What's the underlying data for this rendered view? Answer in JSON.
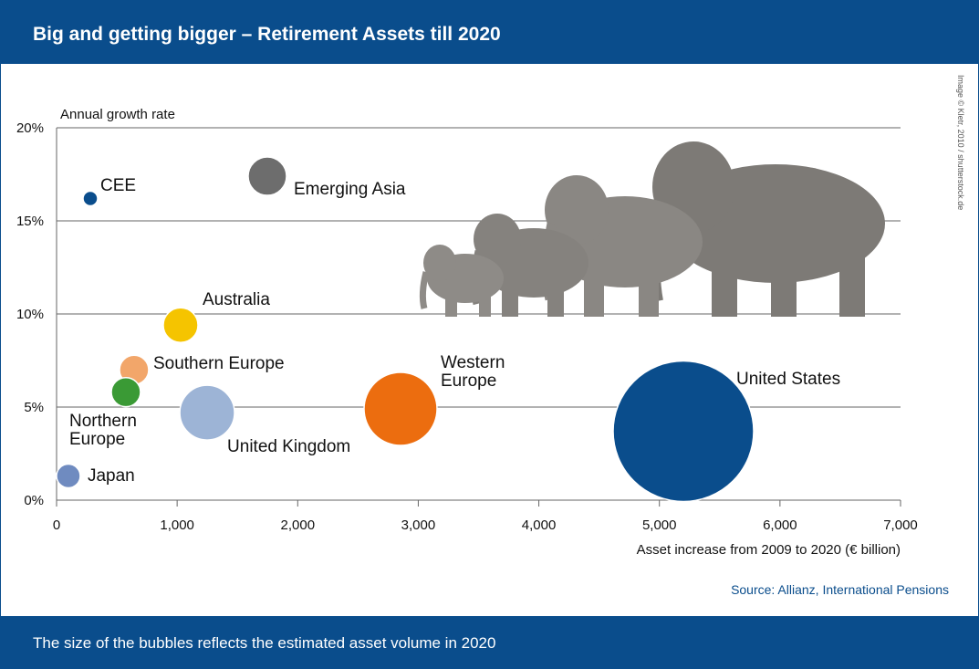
{
  "chart_data": {
    "type": "bubble",
    "title": "Big and getting bigger – Retirement Assets till 2020",
    "y_label": "Annual growth rate",
    "x_label": "Asset increase from 2009 to 2020 (€ billion)",
    "source": "Source: Allianz, International Pensions",
    "credit": "Image © Kletr, 2010 / shutterstock.de",
    "note": "The size of the bubbles reflects the estimated asset volume in 2020",
    "xlim": [
      0,
      7000
    ],
    "xticks": [
      0,
      {
        "value": 1000,
        "label": "1,000"
      },
      {
        "value": 2000,
        "label": "2,000"
      },
      {
        "value": 3000,
        "label": "3,000"
      },
      {
        "value": 4000,
        "label": "4,000"
      },
      {
        "value": 5000,
        "label": "5,000"
      },
      {
        "value": 6000,
        "label": "6,000"
      },
      {
        "value": 7000,
        "label": "7,000"
      }
    ],
    "ylim": [
      0,
      20
    ],
    "yticks": [
      {
        "value": 0,
        "label": "0%"
      },
      {
        "value": 5,
        "label": "5%"
      },
      {
        "value": 10,
        "label": "10%"
      },
      {
        "value": 15,
        "label": "15%"
      },
      {
        "value": 20,
        "label": "20%"
      }
    ],
    "grid": true,
    "points": [
      {
        "name": "CEE",
        "x": 280,
        "y": 16.2,
        "size": 215,
        "color": "#0a4d8c"
      },
      {
        "name": "Emerging Asia",
        "x": 1748,
        "y": 17.4,
        "size": 1490,
        "color": "#6d6d6d"
      },
      {
        "name": "Australia",
        "x": 1029,
        "y": 9.4,
        "size": 1220,
        "color": "#f5c400"
      },
      {
        "name": "Southern Europe",
        "x": 643,
        "y": 7.0,
        "size": 860,
        "color": "#f2a66a"
      },
      {
        "name": "Northern Europe",
        "x": 575,
        "y": 5.8,
        "size": 860,
        "color": "#3a9a35"
      },
      {
        "name": "United Kingdom",
        "x": 1249,
        "y": 4.7,
        "size": 3030,
        "color": "#9db4d6"
      },
      {
        "name": "Japan",
        "x": 98,
        "y": 1.3,
        "size": 570,
        "color": "#6f8bc0"
      },
      {
        "name": "Western Europe",
        "x": 2853,
        "y": 4.9,
        "size": 5400,
        "color": "#ec6d0f"
      },
      {
        "name": "United States",
        "x": 5199,
        "y": 3.7,
        "size": 20000,
        "color": "#0a4d8c"
      }
    ]
  }
}
